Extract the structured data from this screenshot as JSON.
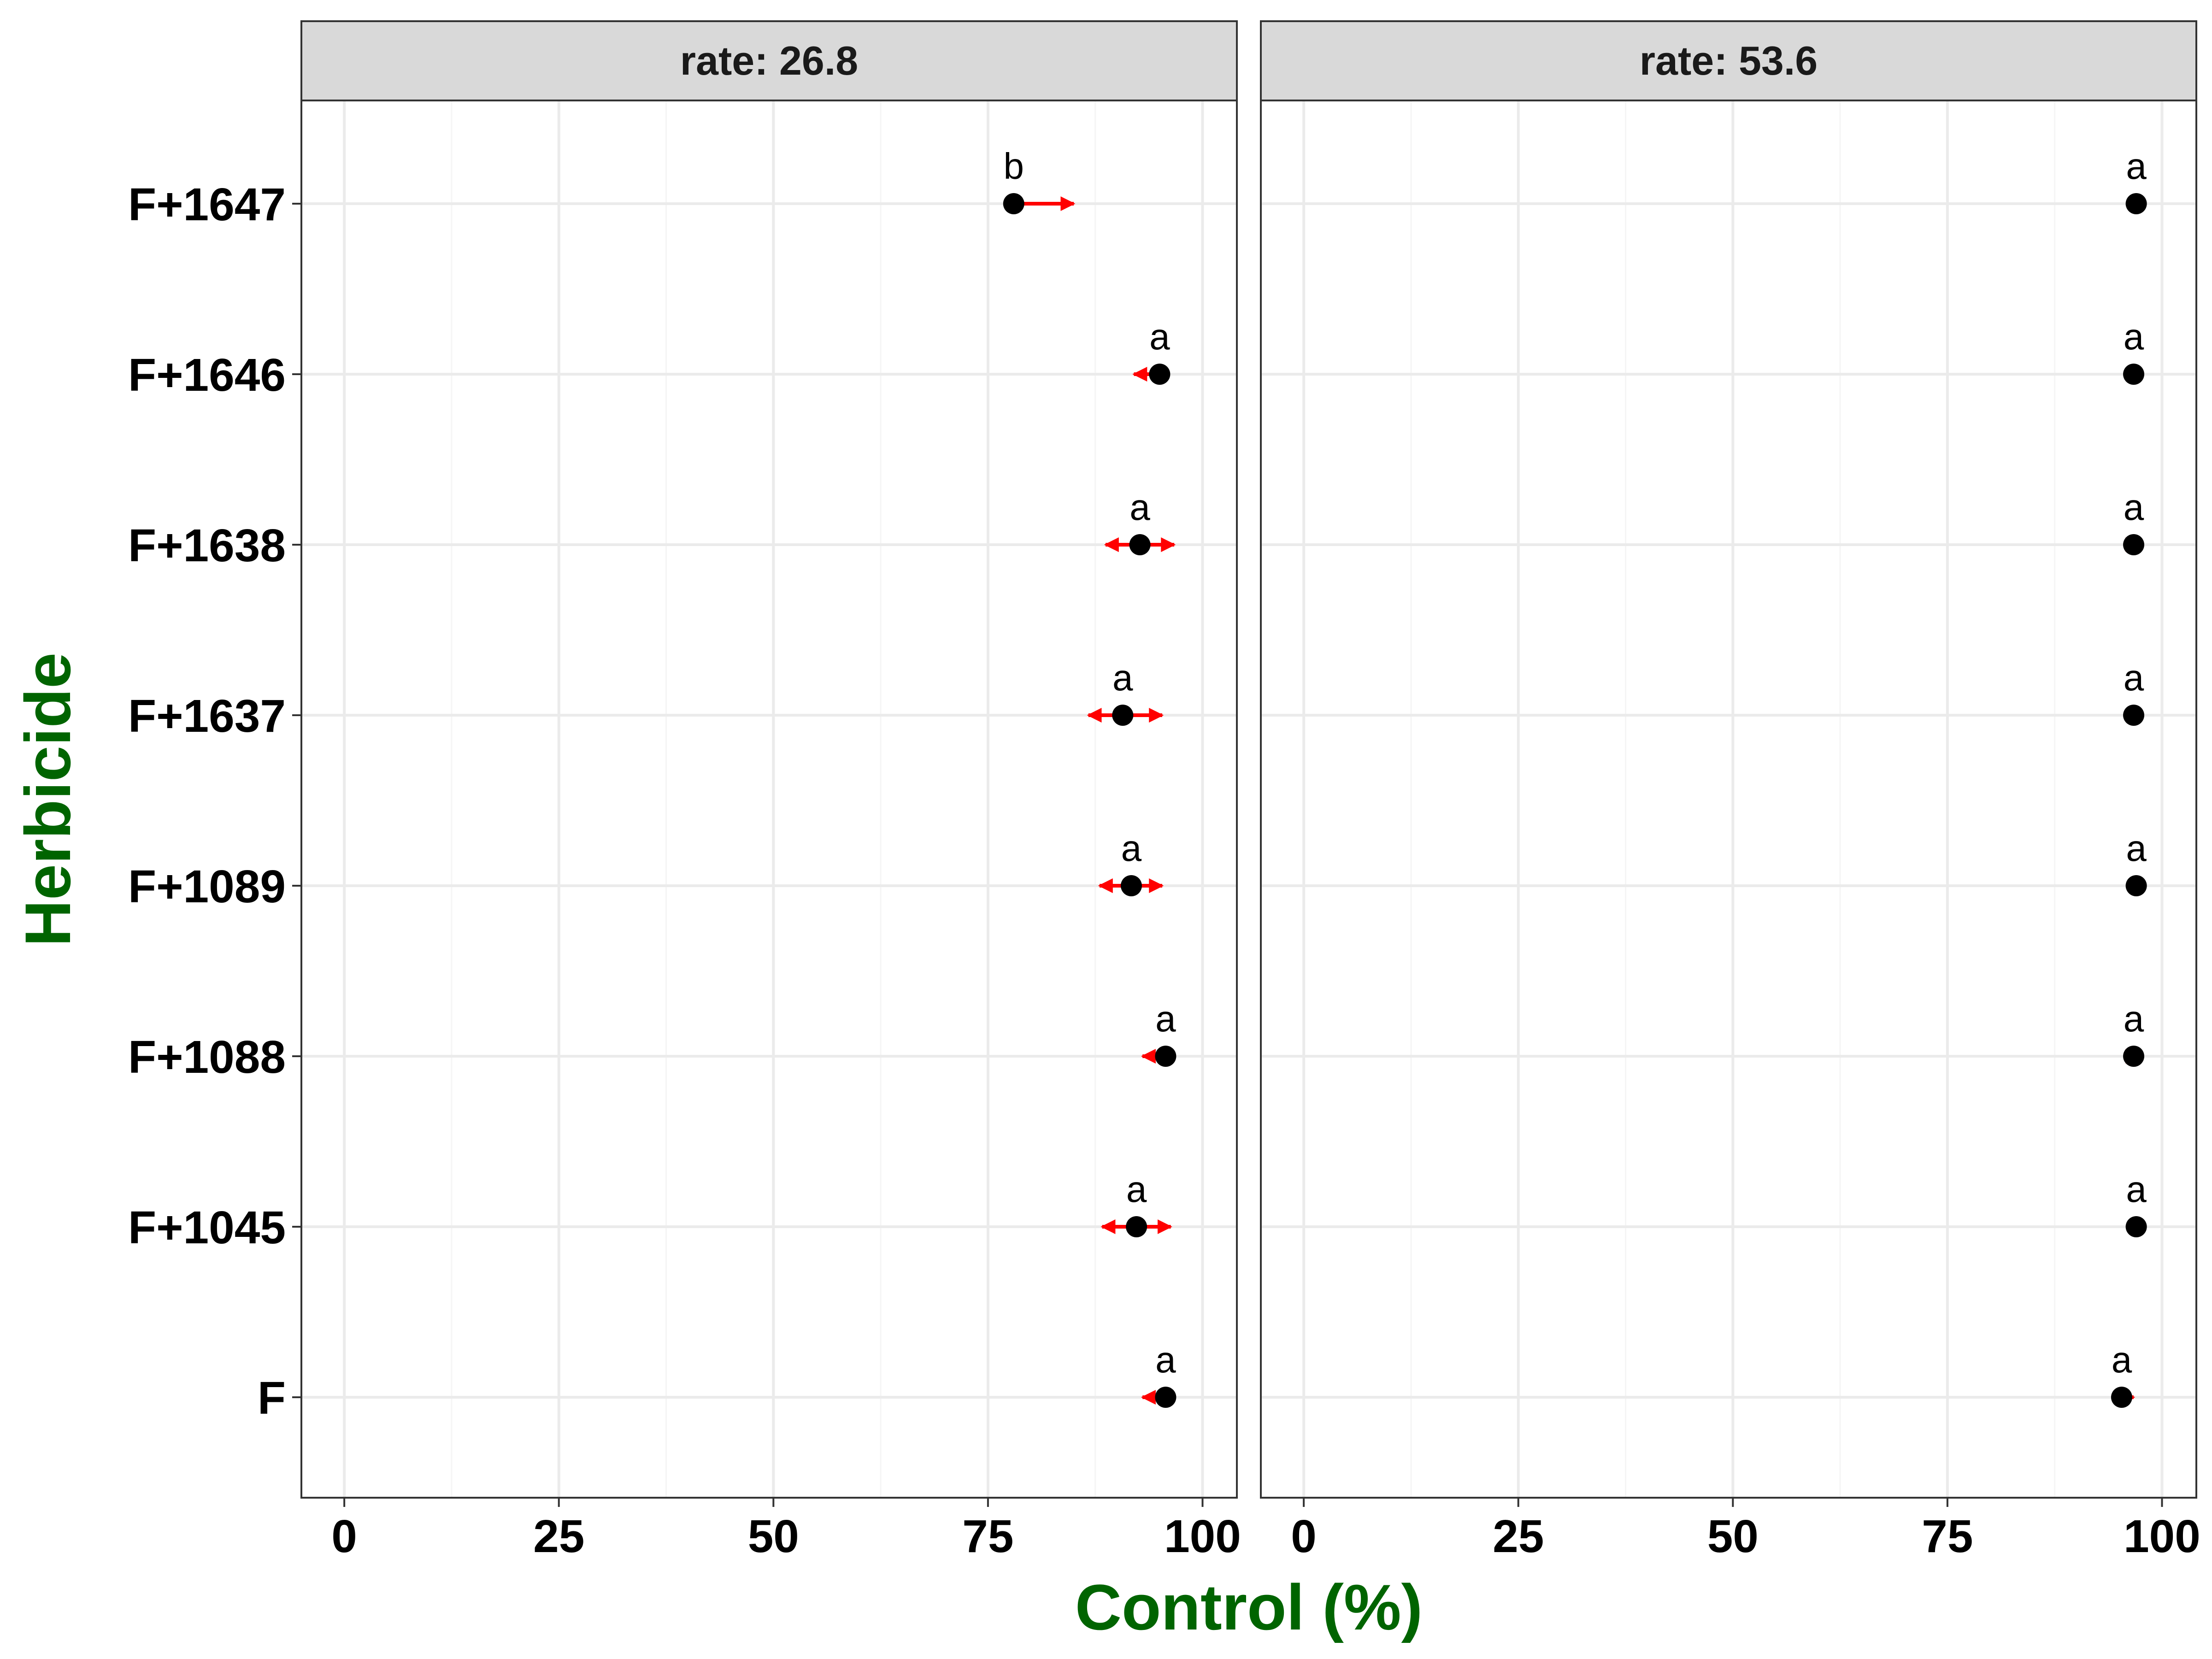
{
  "colors": {
    "axis_title": "#006400",
    "error_bar": "#ff0000",
    "point": "#000000",
    "strip_bg": "#d9d9d9",
    "grid_major": "#ebebeb",
    "grid_minor": "#f5f5f5",
    "panel_border": "#333333"
  },
  "chart_data": {
    "type": "scatter",
    "xlabel": "Control (%)",
    "ylabel": "Herbicide",
    "xlim": [
      -5,
      104
    ],
    "x_ticks": [
      0,
      25,
      50,
      75,
      100
    ],
    "grid": true,
    "legend": "none",
    "categories": [
      "F",
      "F+1045",
      "F+1088",
      "F+1089",
      "F+1637",
      "F+1638",
      "F+1646",
      "F+1647"
    ],
    "panels": [
      {
        "strip": "rate: 26.8",
        "points": [
          {
            "category": "F+1647",
            "value": 78.0,
            "low": 78.0,
            "high": 85.0,
            "letter": "b"
          },
          {
            "category": "F+1646",
            "value": 95.0,
            "low": 92.0,
            "high": 95.0,
            "letter": "a"
          },
          {
            "category": "F+1638",
            "value": 92.7,
            "low": 88.7,
            "high": 96.7,
            "letter": "a"
          },
          {
            "category": "F+1637",
            "value": 90.7,
            "low": 86.7,
            "high": 95.3,
            "letter": "a"
          },
          {
            "category": "F+1089",
            "value": 91.7,
            "low": 88.0,
            "high": 95.3,
            "letter": "a"
          },
          {
            "category": "F+1088",
            "value": 95.7,
            "low": 93.0,
            "high": 95.7,
            "letter": "a"
          },
          {
            "category": "F+1045",
            "value": 92.3,
            "low": 88.3,
            "high": 96.3,
            "letter": "a"
          },
          {
            "category": "F",
            "value": 95.7,
            "low": 93.0,
            "high": 95.7,
            "letter": "a"
          }
        ]
      },
      {
        "strip": "rate: 53.6",
        "points": [
          {
            "category": "F+1647",
            "value": 97.0,
            "low": 96.0,
            "high": 97.0,
            "letter": "a"
          },
          {
            "category": "F+1646",
            "value": 96.7,
            "low": 95.7,
            "high": 97.7,
            "letter": "a"
          },
          {
            "category": "F+1638",
            "value": 96.7,
            "low": 95.7,
            "high": 97.3,
            "letter": "a"
          },
          {
            "category": "F+1637",
            "value": 96.7,
            "low": 95.7,
            "high": 97.7,
            "letter": "a"
          },
          {
            "category": "F+1089",
            "value": 97.0,
            "low": 96.0,
            "high": 97.0,
            "letter": "a"
          },
          {
            "category": "F+1088",
            "value": 96.7,
            "low": 95.7,
            "high": 97.3,
            "letter": "a"
          },
          {
            "category": "F+1045",
            "value": 97.0,
            "low": 96.0,
            "high": 97.0,
            "letter": "a"
          },
          {
            "category": "F",
            "value": 95.3,
            "low": 95.3,
            "high": 96.7,
            "letter": "a"
          }
        ]
      }
    ]
  }
}
